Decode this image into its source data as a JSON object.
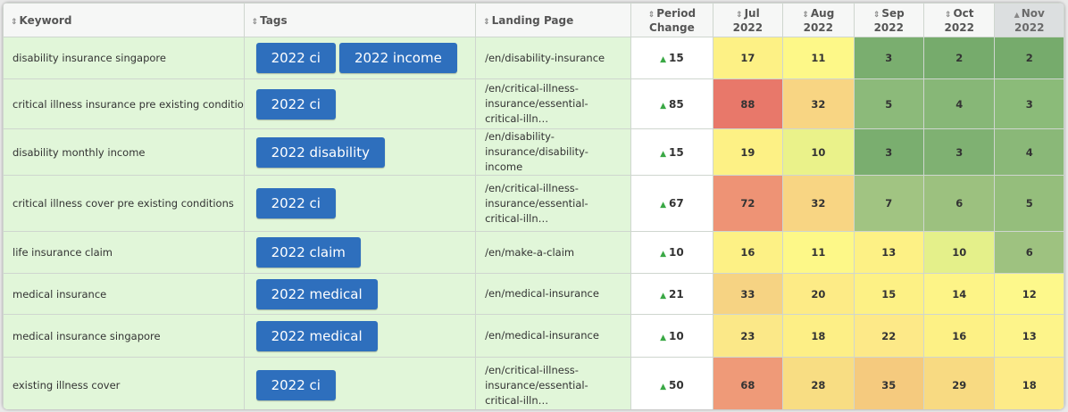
{
  "columns": {
    "keyword": "Keyword",
    "tags": "Tags",
    "landing": "Landing Page",
    "change": [
      "Period",
      "Change"
    ],
    "months": [
      [
        "Jul",
        "2022"
      ],
      [
        "Aug",
        "2022"
      ],
      [
        "Sep",
        "2022"
      ],
      [
        "Oct",
        "2022"
      ],
      [
        "Nov",
        "2022"
      ]
    ]
  },
  "icons": {
    "sort": "sort-both-icon",
    "sort_asc": "sort-ascending-icon",
    "change_up": "triangle-up-icon"
  },
  "colors": {
    "row_bg": "#e1f6d9",
    "tag_bg": "#2e6fbd",
    "change_up": "#3aa845",
    "heat_low": "#76ad6c",
    "heat_mid": "#fdf78d",
    "heat_high": "#e8786a"
  },
  "rows": [
    {
      "keyword": "disability insurance singapore",
      "tags": [
        "2022 ci",
        "2022 income"
      ],
      "landing": "/en/disability-insurance",
      "change": "15",
      "months": [
        "17",
        "11",
        "3",
        "2",
        "2"
      ],
      "colors": [
        "#fdf185",
        "#fdf888",
        "#7aae6f",
        "#76ab6c",
        "#76ab6c"
      ]
    },
    {
      "keyword": "critical illness insurance pre existing conditions",
      "tags": [
        "2022 ci"
      ],
      "landing": "/en/critical-illness-insurance/essential-critical-illn…",
      "change": "85",
      "months": [
        "88",
        "32",
        "5",
        "4",
        "3"
      ],
      "colors": [
        "#e8786a",
        "#f8d583",
        "#8cba7a",
        "#87b777",
        "#8bbb79"
      ]
    },
    {
      "keyword": "disability monthly income",
      "tags": [
        "2022 disability"
      ],
      "landing": "/en/disability-insurance/disability-income",
      "change": "15",
      "months": [
        "19",
        "10",
        "3",
        "3",
        "4"
      ],
      "colors": [
        "#fdf185",
        "#eaf28a",
        "#7aae6f",
        "#7fb172",
        "#8ab878"
      ]
    },
    {
      "keyword": "critical illness cover pre existing conditions",
      "tags": [
        "2022 ci"
      ],
      "landing": "/en/critical-illness-insurance/essential-critical-illn…",
      "change": "67",
      "months": [
        "72",
        "32",
        "7",
        "6",
        "5"
      ],
      "colors": [
        "#ee9375",
        "#f8d583",
        "#a1c482",
        "#9cc17f",
        "#95be7c"
      ]
    },
    {
      "keyword": "life insurance claim",
      "tags": [
        "2022 claim"
      ],
      "landing": "/en/make-a-claim",
      "change": "10",
      "months": [
        "16",
        "11",
        "13",
        "10",
        "6"
      ],
      "colors": [
        "#fdf185",
        "#fdf888",
        "#fdf185",
        "#e4f08a",
        "#9ec280"
      ]
    },
    {
      "keyword": "medical insurance",
      "tags": [
        "2022 medical"
      ],
      "landing": "/en/medical-insurance",
      "change": "21",
      "months": [
        "33",
        "20",
        "15",
        "14",
        "12"
      ],
      "colors": [
        "#f6d383",
        "#fdeb86",
        "#fdf185",
        "#fdf487",
        "#fdf88b"
      ]
    },
    {
      "keyword": "medical insurance singapore",
      "tags": [
        "2022 medical"
      ],
      "landing": "/en/medical-insurance",
      "change": "10",
      "months": [
        "23",
        "18",
        "22",
        "16",
        "13"
      ],
      "colors": [
        "#fbe888",
        "#fdef86",
        "#fde988",
        "#fdf185",
        "#fdf48a"
      ]
    },
    {
      "keyword": "existing illness cover",
      "tags": [
        "2022 ci"
      ],
      "landing": "/en/critical-illness-insurance/essential-critical-illn…",
      "change": "50",
      "months": [
        "68",
        "28",
        "35",
        "29",
        "18"
      ],
      "colors": [
        "#ef9a78",
        "#f8dd83",
        "#f5ca7e",
        "#f8da82",
        "#fdeb88"
      ]
    }
  ]
}
